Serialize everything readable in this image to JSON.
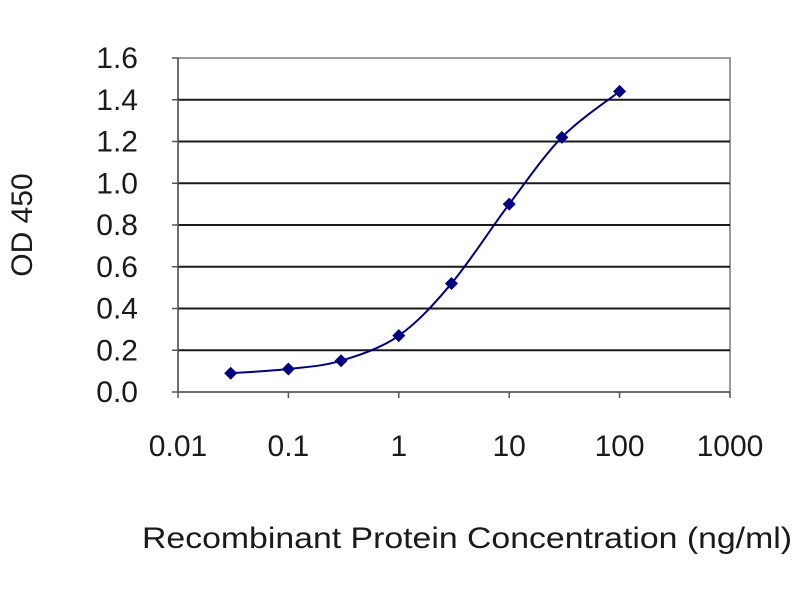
{
  "chart_data": {
    "type": "line",
    "title": "",
    "xlabel": "Recombinant Protein Concentration (ng/ml)",
    "ylabel": "OD 450",
    "x_scale": "log",
    "xlim": [
      0.01,
      1000
    ],
    "ylim": [
      0.0,
      1.6
    ],
    "x_ticks": [
      0.01,
      0.1,
      1,
      10,
      100,
      1000
    ],
    "x_tick_labels": [
      "0.01",
      "0.1",
      "1",
      "10",
      "100",
      "1000"
    ],
    "y_ticks": [
      0.0,
      0.2,
      0.4,
      0.6,
      0.8,
      1.0,
      1.2,
      1.4,
      1.6
    ],
    "y_tick_labels": [
      "0.0",
      "0.2",
      "0.4",
      "0.6",
      "0.8",
      "1.0",
      "1.2",
      "1.4",
      "1.6"
    ],
    "grid": "horizontal",
    "legend": "none",
    "series": [
      {
        "x": [
          0.03,
          0.1,
          0.3,
          1,
          3,
          10,
          30,
          100
        ],
        "y": [
          0.09,
          0.11,
          0.15,
          0.27,
          0.52,
          0.9,
          1.22,
          1.44
        ],
        "color": "#000080"
      }
    ]
  }
}
